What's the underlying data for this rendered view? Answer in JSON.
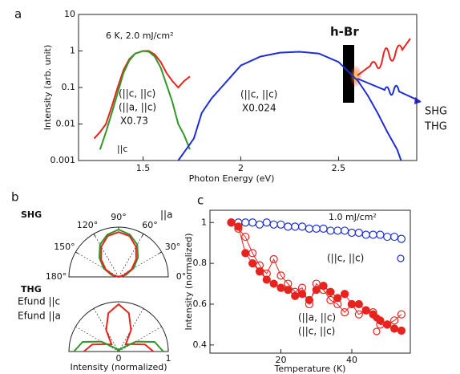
{
  "chart_data": [
    {
      "type": "line",
      "label": "a",
      "annotation": "6 K, 2.0 mJ/cm²",
      "note": "||c",
      "xlabel": "Photon Energy (eV)",
      "ylabel": "Intensity (arb. unit)",
      "log_y": true,
      "xlim": [
        1.17,
        2.9
      ],
      "ylim": [
        0.001,
        10
      ],
      "xticks": [
        1.5,
        2,
        2.5
      ],
      "yticks": [
        0.001,
        0.01,
        0.1,
        1,
        10
      ],
      "inset": {
        "label": "h-Br",
        "outputs": [
          "SHG",
          "THG"
        ]
      },
      "series": [
        {
          "name": "(||c, ||c)",
          "color": "#e8231e",
          "x": [
            1.25,
            1.28,
            1.31,
            1.34,
            1.37,
            1.4,
            1.43,
            1.46,
            1.5,
            1.53,
            1.56,
            1.59,
            1.62,
            1.65,
            1.68,
            1.71,
            1.74
          ],
          "values": [
            0.004,
            0.006,
            0.01,
            0.03,
            0.1,
            0.3,
            0.6,
            0.85,
            1.0,
            1.0,
            0.8,
            0.5,
            0.25,
            0.15,
            0.1,
            0.15,
            0.2
          ]
        },
        {
          "name": "(||a, ||c)",
          "scale_label": "X0.73",
          "color": "#2e9a27",
          "x": [
            1.28,
            1.31,
            1.34,
            1.37,
            1.4,
            1.43,
            1.46,
            1.5,
            1.53,
            1.56,
            1.59,
            1.62,
            1.65,
            1.68,
            1.71,
            1.74
          ],
          "values": [
            0.002,
            0.006,
            0.02,
            0.07,
            0.25,
            0.55,
            0.85,
            1.0,
            0.95,
            0.7,
            0.35,
            0.12,
            0.04,
            0.01,
            0.005,
            0.002
          ]
        },
        {
          "name": "(||c, ||c)",
          "scale_label": "X0.024",
          "color": "#1f2ed6",
          "x": [
            1.68,
            1.72,
            1.76,
            1.8,
            1.85,
            1.9,
            1.95,
            2.0,
            2.1,
            2.2,
            2.3,
            2.4,
            2.5,
            2.6,
            2.65,
            2.7,
            2.75,
            2.8,
            2.82
          ],
          "values": [
            0.001,
            0.002,
            0.004,
            0.02,
            0.05,
            0.1,
            0.2,
            0.4,
            0.7,
            0.9,
            0.95,
            0.85,
            0.5,
            0.15,
            0.06,
            0.02,
            0.006,
            0.002,
            0.001
          ]
        }
      ]
    },
    {
      "type": "polar",
      "label": "b",
      "xlabel": "Intensity (normalized)",
      "angles": [
        0,
        15,
        30,
        45,
        60,
        75,
        90,
        105,
        120,
        135,
        150,
        165,
        180
      ],
      "rlim": [
        0,
        1
      ],
      "plots": [
        {
          "title": "SHG",
          "axis_label": "||a",
          "angle_ticks": [
            {
              "value": 0,
              "label": "0°"
            },
            {
              "value": 30,
              "label": "30°"
            },
            {
              "value": 60,
              "label": "60°"
            },
            {
              "value": 90,
              "label": "90°"
            },
            {
              "value": 120,
              "label": "120°"
            },
            {
              "value": 150,
              "label": "150°"
            },
            {
              "value": 180,
              "label": "180°"
            }
          ],
          "series": [
            {
              "color": "#2e9a27",
              "values": [
                0,
                0.15,
                0.35,
                0.55,
                0.75,
                0.88,
                0.95,
                0.88,
                0.75,
                0.55,
                0.35,
                0.15,
                0
              ]
            },
            {
              "color": "#e8231e",
              "values": [
                0,
                0.1,
                0.3,
                0.5,
                0.7,
                0.85,
                0.9,
                0.85,
                0.7,
                0.5,
                0.3,
                0.1,
                0
              ]
            }
          ]
        },
        {
          "title": "THG",
          "rticks": [
            0,
            1
          ],
          "series": [
            {
              "name": "Efund ||c",
              "color": "#e8231e",
              "values": [
                0.7,
                0.55,
                0.3,
                0.2,
                0.5,
                0.8,
                0.95,
                0.8,
                0.5,
                0.2,
                0.3,
                0.55,
                0.7
              ]
            },
            {
              "name": "Efund ||a",
              "color": "#2e9a27",
              "values": [
                0.9,
                0.75,
                0.4,
                0.1,
                0.05,
                0.02,
                0.02,
                0.02,
                0.05,
                0.1,
                0.4,
                0.75,
                0.9
              ]
            }
          ]
        }
      ]
    },
    {
      "type": "scatter",
      "label": "c",
      "annotation": "1.0 mJ/cm²",
      "xlabel": "Temperature (K)",
      "ylabel": "Intensity (normalized)",
      "xlim": [
        0,
        56.5
      ],
      "ylim": [
        0.36,
        1.06
      ],
      "xticks": [
        20,
        40
      ],
      "yticks": [
        0.4,
        0.6,
        0.8,
        1
      ],
      "x": [
        6,
        8,
        10,
        12,
        14,
        16,
        18,
        20,
        22,
        24,
        26,
        28,
        30,
        32,
        34,
        36,
        38,
        40,
        42,
        44,
        46,
        48,
        50,
        52,
        54
      ],
      "series": [
        {
          "name": "(||c, ||c)",
          "color": "#1f2ed6",
          "marker": "open",
          "values": [
            1,
            1,
            1,
            1,
            0.99,
            1,
            0.99,
            0.99,
            0.98,
            0.98,
            0.98,
            0.97,
            0.97,
            0.97,
            0.96,
            0.96,
            0.96,
            0.95,
            0.95,
            0.94,
            0.94,
            0.94,
            0.93,
            0.93,
            0.92
          ]
        },
        {
          "name": "(||a, ||c)",
          "color": "#e8231e",
          "marker": "filled",
          "values": [
            1,
            0.98,
            0.85,
            0.8,
            0.76,
            0.72,
            0.7,
            0.68,
            0.67,
            0.64,
            0.65,
            0.62,
            0.67,
            0.69,
            0.66,
            0.63,
            0.65,
            0.6,
            0.6,
            0.57,
            0.55,
            0.52,
            0.5,
            0.48,
            0.47
          ]
        },
        {
          "name": "(||c, ||c)",
          "color": "#e8231e",
          "marker": "open",
          "values": [
            1,
            0.97,
            0.93,
            0.85,
            0.79,
            0.75,
            0.82,
            0.74,
            0.7,
            0.66,
            0.68,
            0.6,
            0.7,
            0.67,
            0.62,
            0.6,
            0.56,
            0.6,
            0.55,
            0.57,
            0.56,
            0.5,
            0.5,
            0.52,
            0.55
          ]
        }
      ]
    }
  ]
}
